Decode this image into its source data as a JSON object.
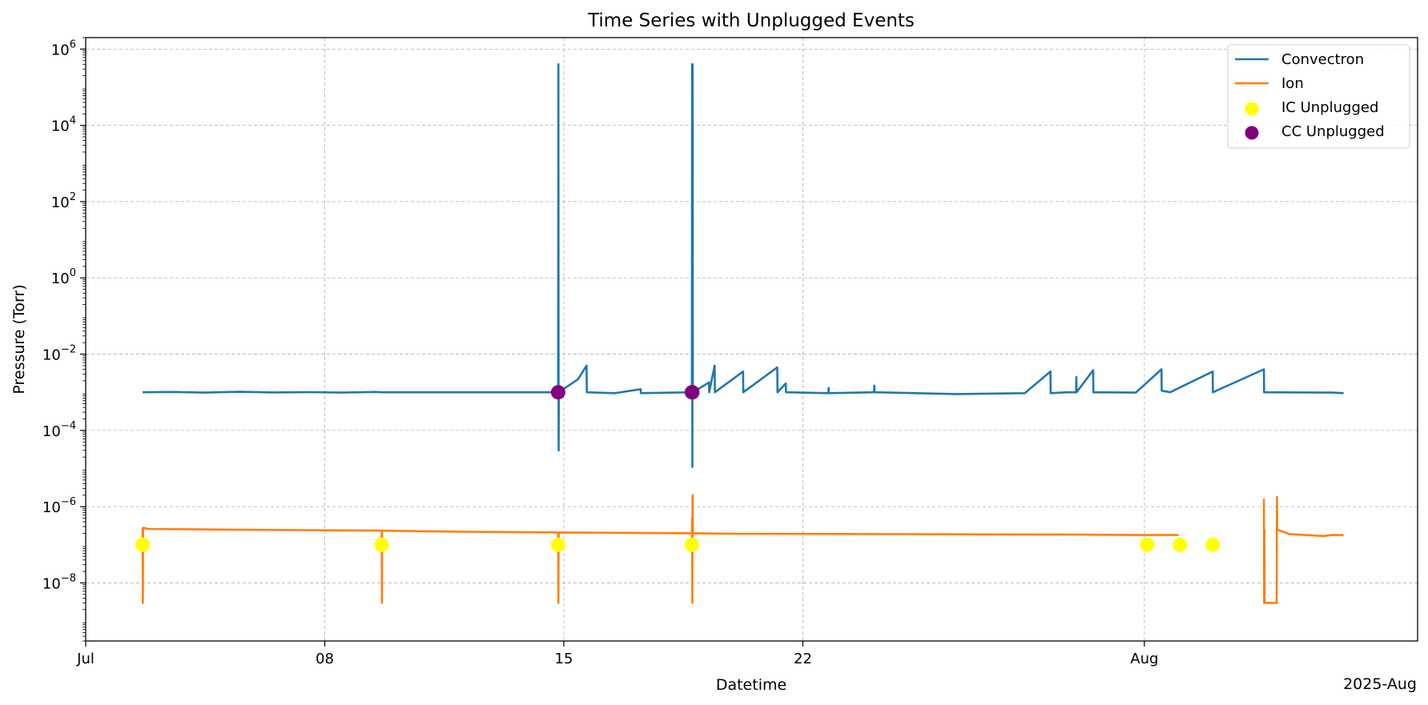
{
  "chart_data": {
    "type": "line",
    "title": "Time Series with Unplugged Events",
    "xlabel": "Datetime",
    "ylabel": "Pressure (Torr)",
    "x_offset_label": "2025-Aug",
    "yscale": "log",
    "ylim": [
      3e-10,
      2000000.0
    ],
    "xlim": [
      "2025-07-01",
      "2025-08-09"
    ],
    "grid": true,
    "grid_style": "dashed",
    "legend_position": "upper right",
    "x_ticks": [
      {
        "date": "2025-07-01",
        "label": "Jul"
      },
      {
        "date": "2025-07-08",
        "label": "08"
      },
      {
        "date": "2025-07-15",
        "label": "15"
      },
      {
        "date": "2025-07-22",
        "label": "22"
      },
      {
        "date": "2025-08-01",
        "label": "Aug"
      }
    ],
    "y_ticks": [
      {
        "value": 1e-08,
        "base": "10",
        "exp": "−8"
      },
      {
        "value": 1e-06,
        "base": "10",
        "exp": "−6"
      },
      {
        "value": 0.0001,
        "base": "10",
        "exp": "−4"
      },
      {
        "value": 0.01,
        "base": "10",
        "exp": "−2"
      },
      {
        "value": 1,
        "base": "10",
        "exp": "0"
      },
      {
        "value": 100,
        "base": "10",
        "exp": "2"
      },
      {
        "value": 10000,
        "base": "10",
        "exp": "4"
      },
      {
        "value": 1000000,
        "base": "10",
        "exp": "6"
      }
    ],
    "series": [
      {
        "name": "Convectron",
        "kind": "line",
        "color": "#1f77b4",
        "points": [
          [
            "2025-07-02 16:00",
            0.001
          ],
          [
            "2025-07-03 12:00",
            0.00102
          ],
          [
            "2025-07-04 12:00",
            0.00098
          ],
          [
            "2025-07-05 12:00",
            0.00103
          ],
          [
            "2025-07-06 12:00",
            0.00099
          ],
          [
            "2025-07-07 12:00",
            0.00101
          ],
          [
            "2025-07-08 12:00",
            0.00098
          ],
          [
            "2025-07-09 12:00",
            0.00102
          ],
          [
            "2025-07-09 16:00",
            0.001
          ],
          [
            "2025-07-14 20:00",
            0.001
          ],
          [
            "2025-07-14 20:10",
            400000
          ],
          [
            "2025-07-14 20:20",
            3e-05
          ],
          [
            "2025-07-14 20:30",
            0.001
          ],
          [
            "2025-07-15 10:00",
            0.0022
          ],
          [
            "2025-07-15 16:00",
            0.005
          ],
          [
            "2025-07-15 16:10",
            0.001
          ],
          [
            "2025-07-16 12:00",
            0.00095
          ],
          [
            "2025-07-17 06:00",
            0.0012
          ],
          [
            "2025-07-17 06:10",
            0.00095
          ],
          [
            "2025-07-18 18:00",
            0.001
          ],
          [
            "2025-07-18 18:10",
            400000
          ],
          [
            "2025-07-18 18:20",
            1.1e-05
          ],
          [
            "2025-07-18 18:30",
            400000
          ],
          [
            "2025-07-18 18:40",
            0.001
          ],
          [
            "2025-07-19 06:00",
            0.0018
          ],
          [
            "2025-07-19 06:10",
            0.001
          ],
          [
            "2025-07-19 10:00",
            0.005
          ],
          [
            "2025-07-19 10:10",
            0.001
          ],
          [
            "2025-07-20 06:00",
            0.0035
          ],
          [
            "2025-07-20 06:10",
            0.001
          ],
          [
            "2025-07-21 06:00",
            0.0045
          ],
          [
            "2025-07-21 06:10",
            0.001
          ],
          [
            "2025-07-21 12:00",
            0.0017
          ],
          [
            "2025-07-21 12:10",
            0.001
          ],
          [
            "2025-07-22 18:00",
            0.00095
          ],
          [
            "2025-07-22 18:10",
            0.0013
          ],
          [
            "2025-07-22 18:20",
            0.00095
          ],
          [
            "2025-07-24 02:00",
            0.001
          ],
          [
            "2025-07-24 02:10",
            0.0015
          ],
          [
            "2025-07-24 02:20",
            0.001
          ],
          [
            "2025-07-26 12:00",
            0.0009
          ],
          [
            "2025-07-28 12:00",
            0.00095
          ],
          [
            "2025-07-29 06:00",
            0.0035
          ],
          [
            "2025-07-29 06:10",
            0.00095
          ],
          [
            "2025-07-29 18:00",
            0.001
          ],
          [
            "2025-07-30 00:00",
            0.001
          ],
          [
            "2025-07-30 00:10",
            0.0025
          ],
          [
            "2025-07-30 00:20",
            0.001
          ],
          [
            "2025-07-30 12:00",
            0.0038
          ],
          [
            "2025-07-30 12:10",
            0.001
          ],
          [
            "2025-07-31 18:00",
            0.00098
          ],
          [
            "2025-08-01 12:00",
            0.004
          ],
          [
            "2025-08-01 12:10",
            0.0011
          ],
          [
            "2025-08-01 18:00",
            0.001
          ],
          [
            "2025-08-03 00:00",
            0.0035
          ],
          [
            "2025-08-03 00:10",
            0.001
          ],
          [
            "2025-08-04 12:00",
            0.004
          ],
          [
            "2025-08-04 12:10",
            0.001
          ],
          [
            "2025-08-06 12:00",
            0.00098
          ],
          [
            "2025-08-06 20:00",
            0.00095
          ]
        ]
      },
      {
        "name": "Ion",
        "kind": "line",
        "color": "#ff7f0e",
        "points": [
          [
            "2025-07-02 16:00",
            2.8e-07
          ],
          [
            "2025-07-02 16:10",
            3e-09
          ],
          [
            "2025-07-02 16:20",
            2.8e-07
          ],
          [
            "2025-07-02 20:00",
            2.6e-07
          ],
          [
            "2025-07-05 00:00",
            2.5e-07
          ],
          [
            "2025-07-08 00:00",
            2.4e-07
          ],
          [
            "2025-07-09 16:00",
            2.35e-07
          ],
          [
            "2025-07-09 16:10",
            3e-09
          ],
          [
            "2025-07-09 16:20",
            2.35e-07
          ],
          [
            "2025-07-12 00:00",
            2.2e-07
          ],
          [
            "2025-07-14 20:00",
            2.1e-07
          ],
          [
            "2025-07-14 20:10",
            3e-09
          ],
          [
            "2025-07-14 20:20",
            2.1e-07
          ],
          [
            "2025-07-17 00:00",
            2.05e-07
          ],
          [
            "2025-07-18 18:00",
            2e-07
          ],
          [
            "2025-07-18 18:10",
            5e-07
          ],
          [
            "2025-07-18 18:20",
            3e-09
          ],
          [
            "2025-07-18 18:30",
            2e-06
          ],
          [
            "2025-07-18 18:40",
            2e-07
          ],
          [
            "2025-07-20 00:00",
            1.95e-07
          ],
          [
            "2025-07-25 00:00",
            1.9e-07
          ],
          [
            "2025-07-30 00:00",
            1.85e-07
          ],
          [
            "2025-08-01 00:00",
            1.8e-07
          ],
          [
            "2025-08-02 00:00",
            1.8e-07
          ]
        ],
        "segment2": [
          [
            "2025-08-04 12:00",
            1.6e-06
          ],
          [
            "2025-08-04 12:10",
            3e-09
          ],
          [
            "2025-08-04 12:20",
            2.5e-07
          ],
          [
            "2025-08-04 12:30",
            3e-09
          ],
          [
            "2025-08-04 21:00",
            3e-09
          ],
          [
            "2025-08-04 21:10",
            1.8e-06
          ],
          [
            "2025-08-04 21:20",
            2.5e-07
          ],
          [
            "2025-08-05 06:00",
            1.9e-07
          ],
          [
            "2025-08-06 06:00",
            1.7e-07
          ],
          [
            "2025-08-06 12:00",
            1.8e-07
          ],
          [
            "2025-08-06 20:00",
            1.8e-07
          ]
        ]
      },
      {
        "name": "IC Unplugged",
        "kind": "scatter",
        "color": "#ffff00",
        "points": [
          [
            "2025-07-02 16:00",
            1e-07
          ],
          [
            "2025-07-09 16:00",
            1e-07
          ],
          [
            "2025-07-14 20:00",
            1e-07
          ],
          [
            "2025-07-18 18:00",
            1e-07
          ],
          [
            "2025-08-01 02:00",
            1e-07
          ],
          [
            "2025-08-02 01:00",
            1e-07
          ],
          [
            "2025-08-03 00:00",
            1e-07
          ]
        ]
      },
      {
        "name": "CC Unplugged",
        "kind": "scatter",
        "color": "#800080",
        "points": [
          [
            "2025-07-14 20:00",
            0.001
          ],
          [
            "2025-07-18 18:00",
            0.001
          ],
          [
            "2025-07-18 18:20",
            0.001
          ]
        ]
      }
    ]
  }
}
